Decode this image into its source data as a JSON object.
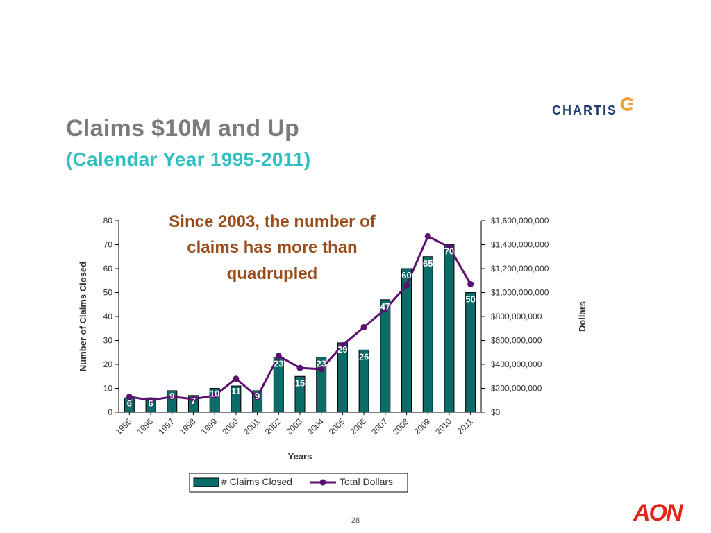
{
  "slide": {
    "title": "Claims $10M and Up",
    "subtitle": "(Calendar Year 1995-2011)",
    "page_number": "28"
  },
  "brand_logo": {
    "text": "CHARTIS",
    "color": "#1f3a6e",
    "mark_color": "#f0a030"
  },
  "corp_logo": {
    "text": "AON",
    "color": "#e1261c"
  },
  "colors": {
    "bar_fill": "#0b6b68",
    "line": "#5b0f6e",
    "annotation": "#9a4d1a",
    "accent_rule": "#d9a441",
    "bar_label": "#ffffff"
  },
  "chart_data": {
    "type": "bar",
    "categories": [
      "1995",
      "1996",
      "1997",
      "1998",
      "1999",
      "2000",
      "2001",
      "2002",
      "2003",
      "2004",
      "2005",
      "2006",
      "2007",
      "2008",
      "2009",
      "2010",
      "2011"
    ],
    "series": [
      {
        "name": "# Claims Closed",
        "type": "bar",
        "axis": "left",
        "values": [
          6,
          6,
          9,
          7,
          10,
          11,
          9,
          23,
          15,
          23,
          29,
          26,
          47,
          60,
          65,
          70,
          50
        ]
      },
      {
        "name": "Total Dollars",
        "type": "line",
        "axis": "right",
        "values": [
          130000000,
          100000000,
          130000000,
          110000000,
          140000000,
          280000000,
          130000000,
          470000000,
          370000000,
          360000000,
          560000000,
          710000000,
          860000000,
          1060000000,
          1470000000,
          1380000000,
          1070000000
        ]
      }
    ],
    "bar_labels": [
      "6",
      "6",
      "9",
      "7",
      "10",
      "11",
      "9",
      "23",
      "15",
      "23",
      "29",
      "26",
      "47",
      "60",
      "65",
      "70",
      "50"
    ],
    "xlabel": "Years",
    "ylabel": "Number of Claims Closed",
    "y2label": "Dollars",
    "ylim": [
      0,
      80
    ],
    "y2lim": [
      0,
      1600000000
    ],
    "yticks": [
      "0",
      "10",
      "20",
      "30",
      "40",
      "50",
      "60",
      "70",
      "80"
    ],
    "y2ticks": [
      "$0",
      "$200,000,000",
      "$400,000,000",
      "$600,000,000",
      "$800,000,000",
      "$1,000,000,000",
      "$1,200,000,000",
      "$1,400,000,000",
      "$1,600,000,000"
    ],
    "annotation": [
      "Since 2003, the number of",
      "claims has more than",
      "quadrupled"
    ],
    "legend": [
      "# Claims Closed",
      "Total Dollars"
    ],
    "legend_position": "bottom",
    "grid": false
  }
}
